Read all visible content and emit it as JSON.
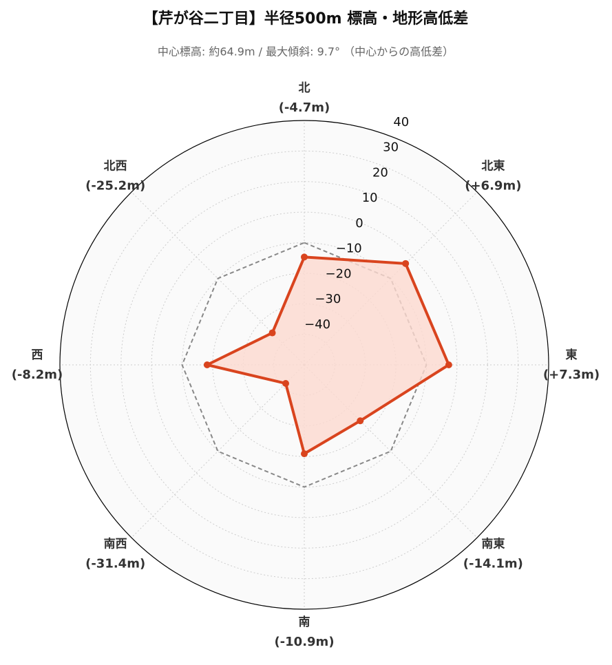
{
  "chart_data": {
    "type": "radar",
    "title": "【芹が谷二丁目】半径500m 標高・地形高低差",
    "subtitle": "中心標高: 約64.9m / 最大傾斜: 9.7° （中心からの高低差）",
    "categories": [
      "北",
      "北東",
      "東",
      "南東",
      "南",
      "南西",
      "西",
      "北西"
    ],
    "values": [
      -4.7,
      6.9,
      7.3,
      -14.1,
      -10.9,
      -31.4,
      -8.2,
      -25.2
    ],
    "value_labels": [
      "(-4.7m)",
      "(+6.9m)",
      "(+7.3m)",
      "(-14.1m)",
      "(-10.9m)",
      "(-31.4m)",
      "(-8.2m)",
      "(-25.2m)"
    ],
    "color": "#d9441e",
    "fill_color": "#fcd9cf",
    "reference_value": 0,
    "reference_color": "#888888",
    "ylim": [
      -40,
      40
    ],
    "yticks": [
      {
        "value": -40,
        "label": "−40"
      },
      {
        "value": -30,
        "label": "−30"
      },
      {
        "value": -20,
        "label": "−20"
      },
      {
        "value": -10,
        "label": "−10"
      },
      0,
      10,
      20,
      30,
      40
    ],
    "grid": true
  }
}
